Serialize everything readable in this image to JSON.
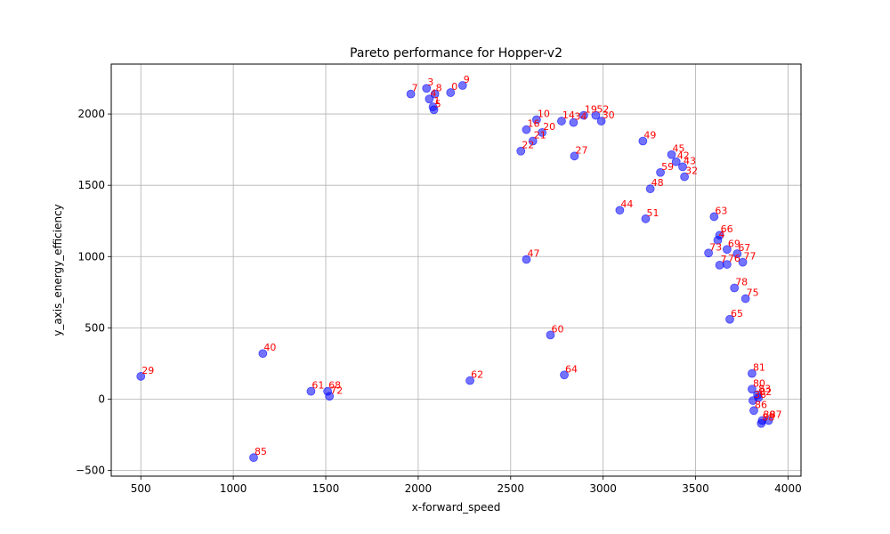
{
  "chart_data": {
    "type": "scatter",
    "title": "Pareto performance for Hopper-v2",
    "xlabel": "x-forward_speed",
    "ylabel": "y_axis_energy_efficiency",
    "xlim": [
      340,
      4070
    ],
    "ylim": [
      -540,
      2350
    ],
    "xticks": [
      500,
      1000,
      1500,
      2000,
      2500,
      3000,
      3500,
      4000
    ],
    "yticks": [
      -500,
      0,
      500,
      1000,
      1500,
      2000
    ],
    "grid": true,
    "point_color": "#0000ff",
    "label_color": "#ff0000",
    "points": [
      {
        "label": "3",
        "x": 2045,
        "y": 2180
      },
      {
        "label": "7",
        "x": 1960,
        "y": 2140
      },
      {
        "label": "8",
        "x": 2090,
        "y": 2140
      },
      {
        "label": "9",
        "x": 2240,
        "y": 2200
      },
      {
        "label": "0",
        "x": 2175,
        "y": 2150
      },
      {
        "label": "4",
        "x": 2060,
        "y": 2105
      },
      {
        "label": "1",
        "x": 2080,
        "y": 2050
      },
      {
        "label": "5",
        "x": 2085,
        "y": 2030
      },
      {
        "label": "10",
        "x": 2640,
        "y": 1960
      },
      {
        "label": "16",
        "x": 2585,
        "y": 1890
      },
      {
        "label": "20",
        "x": 2670,
        "y": 1870
      },
      {
        "label": "21",
        "x": 2620,
        "y": 1810
      },
      {
        "label": "22",
        "x": 2555,
        "y": 1740
      },
      {
        "label": "14",
        "x": 2775,
        "y": 1950
      },
      {
        "label": "19",
        "x": 2895,
        "y": 1990
      },
      {
        "label": "52",
        "x": 2960,
        "y": 1990
      },
      {
        "label": "30",
        "x": 2990,
        "y": 1950
      },
      {
        "label": "34",
        "x": 2840,
        "y": 1940
      },
      {
        "label": "27",
        "x": 2845,
        "y": 1705
      },
      {
        "label": "49",
        "x": 3215,
        "y": 1810
      },
      {
        "label": "45",
        "x": 3370,
        "y": 1715
      },
      {
        "label": "42",
        "x": 3395,
        "y": 1665
      },
      {
        "label": "43",
        "x": 3430,
        "y": 1630
      },
      {
        "label": "32",
        "x": 3440,
        "y": 1560
      },
      {
        "label": "59",
        "x": 3310,
        "y": 1590
      },
      {
        "label": "48",
        "x": 3255,
        "y": 1475
      },
      {
        "label": "44",
        "x": 3090,
        "y": 1325
      },
      {
        "label": "51",
        "x": 3230,
        "y": 1265
      },
      {
        "label": "63",
        "x": 3600,
        "y": 1280
      },
      {
        "label": "66",
        "x": 3630,
        "y": 1150
      },
      {
        "label": "4",
        "x": 3620,
        "y": 1115
      },
      {
        "label": "69",
        "x": 3670,
        "y": 1050
      },
      {
        "label": "73",
        "x": 3570,
        "y": 1025
      },
      {
        "label": "67",
        "x": 3725,
        "y": 1020
      },
      {
        "label": "76",
        "x": 3670,
        "y": 945
      },
      {
        "label": "77",
        "x": 3755,
        "y": 960
      },
      {
        "label": "7",
        "x": 3630,
        "y": 940
      },
      {
        "label": "78",
        "x": 3710,
        "y": 780
      },
      {
        "label": "75",
        "x": 3770,
        "y": 705
      },
      {
        "label": "65",
        "x": 3685,
        "y": 560
      },
      {
        "label": "47",
        "x": 2585,
        "y": 980
      },
      {
        "label": "60",
        "x": 2715,
        "y": 450
      },
      {
        "label": "64",
        "x": 2790,
        "y": 170
      },
      {
        "label": "62",
        "x": 2280,
        "y": 130
      },
      {
        "label": "40",
        "x": 1160,
        "y": 320
      },
      {
        "label": "29",
        "x": 500,
        "y": 160
      },
      {
        "label": "61",
        "x": 1420,
        "y": 55
      },
      {
        "label": "68",
        "x": 1510,
        "y": 55
      },
      {
        "label": "72",
        "x": 1520,
        "y": 20
      },
      {
        "label": "85",
        "x": 1110,
        "y": -410
      },
      {
        "label": "81",
        "x": 3805,
        "y": 180
      },
      {
        "label": "80",
        "x": 3805,
        "y": 70
      },
      {
        "label": "83",
        "x": 3835,
        "y": 30
      },
      {
        "label": "82",
        "x": 3840,
        "y": 10
      },
      {
        "label": "36",
        "x": 3810,
        "y": -10
      },
      {
        "label": "86",
        "x": 3815,
        "y": -80
      },
      {
        "label": "89",
        "x": 3860,
        "y": -150
      },
      {
        "label": "87",
        "x": 3895,
        "y": -150
      },
      {
        "label": "88",
        "x": 3855,
        "y": -170
      }
    ]
  }
}
